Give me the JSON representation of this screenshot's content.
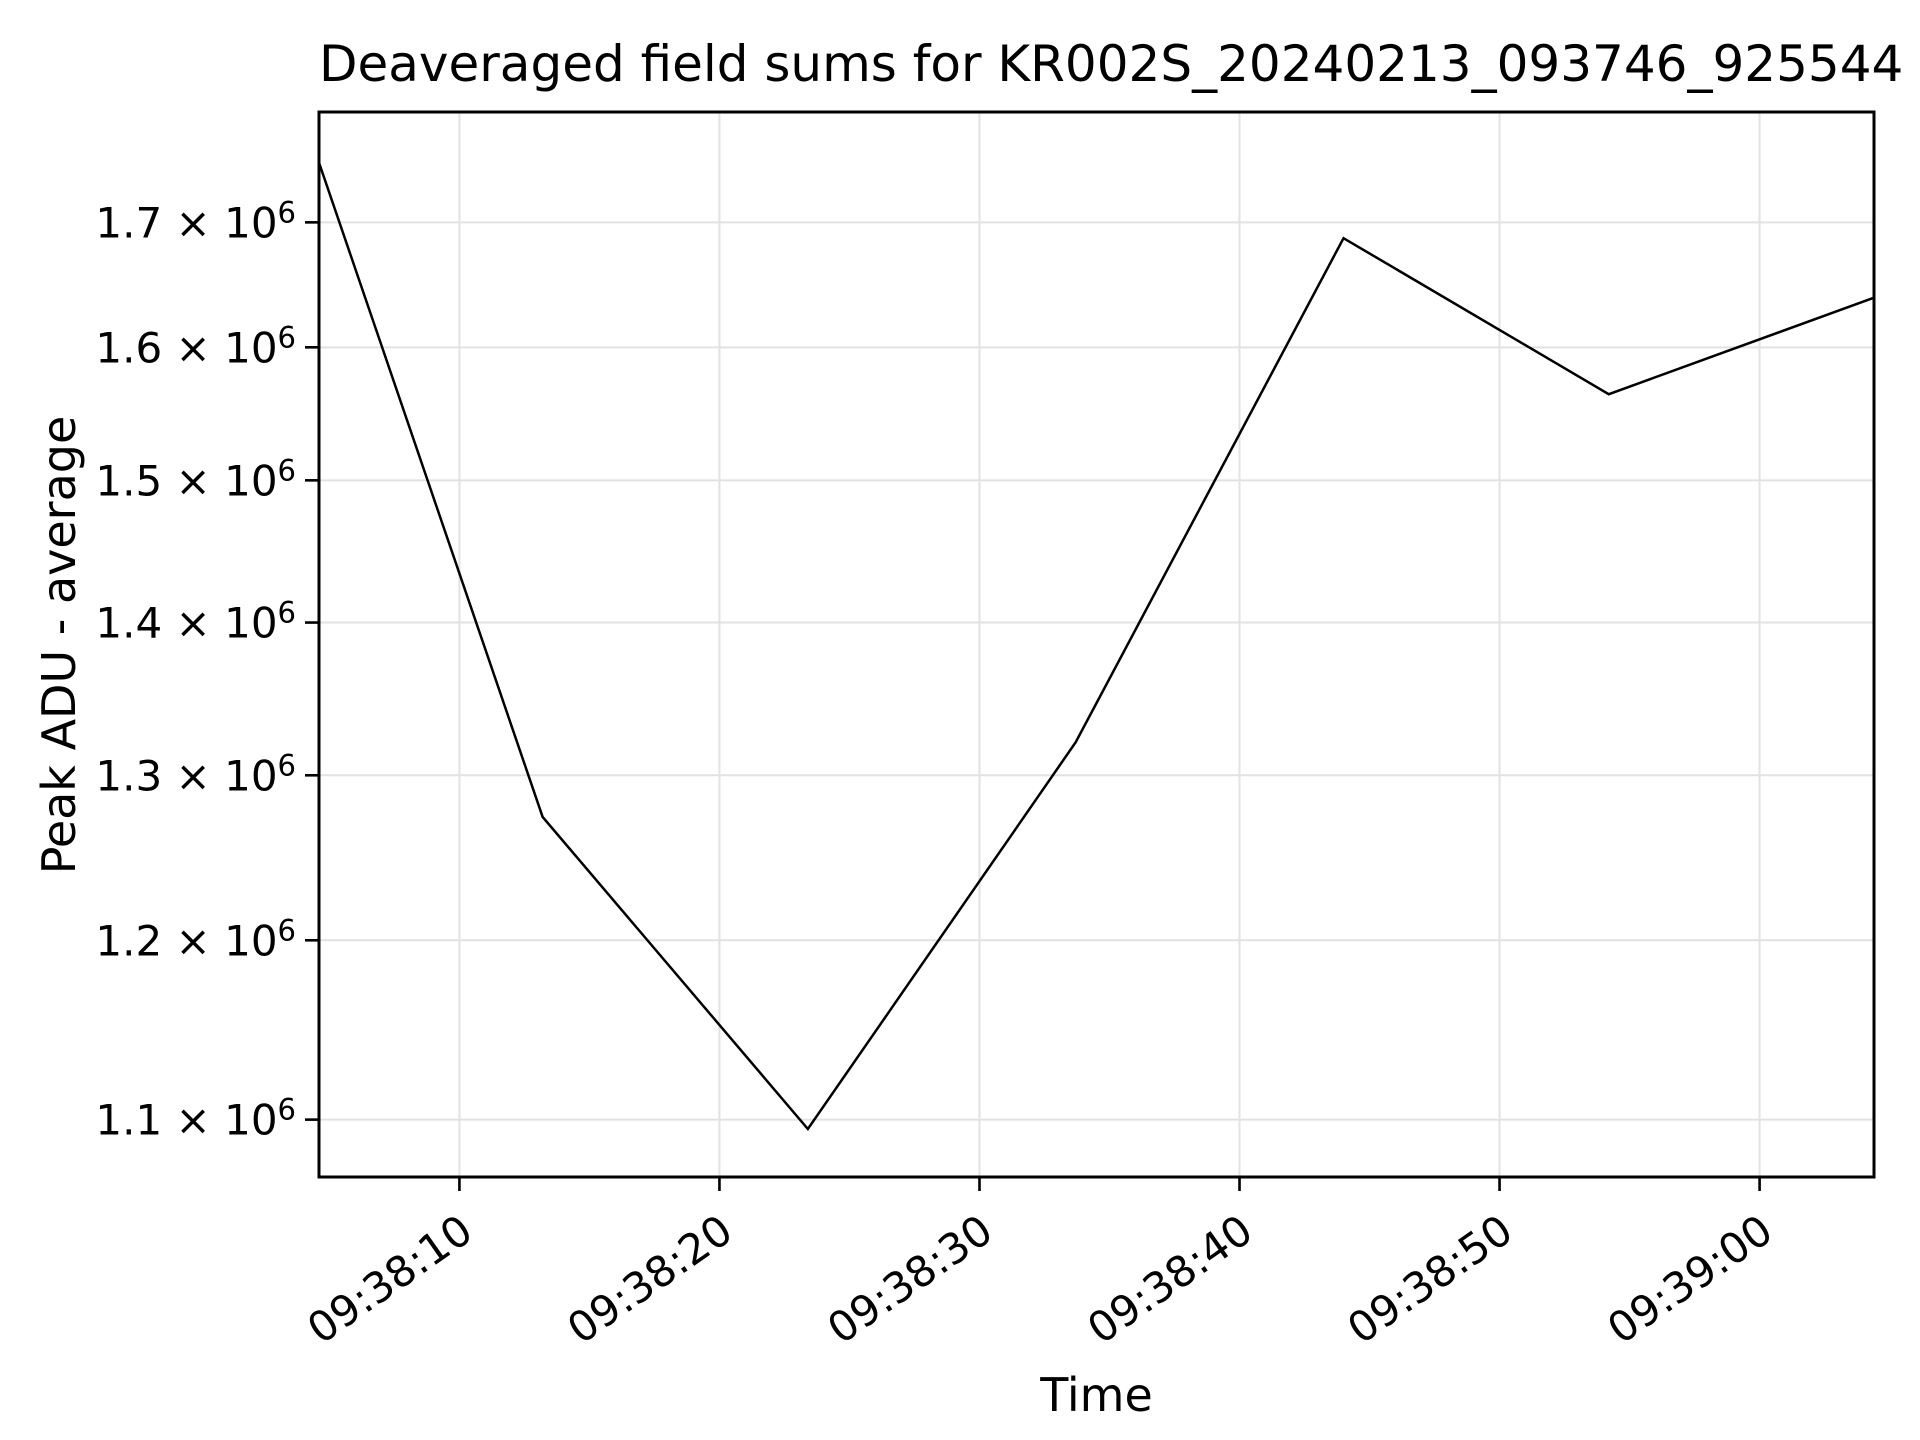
{
  "chart_data": {
    "type": "line",
    "title": "Deaveraged field sums for KR002S_20240213_093746_925544",
    "xlabel": "Time",
    "ylabel": "Peak ADU - average",
    "yscale": "log",
    "grid": true,
    "legend": null,
    "colors": {
      "line": "#000000",
      "grid": "#e2e2e2",
      "axes": "#000000",
      "background": "#ffffff"
    },
    "x_times": [
      "09:38:05",
      "09:38:13",
      "09:38:23",
      "09:38:34",
      "09:38:44",
      "09:38:54",
      "09:39:04"
    ],
    "x_seconds": [
      4.6,
      13.2,
      23.4,
      33.7,
      44.0,
      54.2,
      64.4
    ],
    "values": [
      1750000,
      1274000,
      1095000,
      1321000,
      1687000,
      1564000,
      1639000
    ],
    "series_name": "Peak ADU - average",
    "xlim_seconds": [
      4.6,
      64.4
    ],
    "ylim": [
      1069800,
      1793500
    ],
    "xticks": [
      {
        "seconds": 10,
        "label": "09:38:10"
      },
      {
        "seconds": 20,
        "label": "09:38:20"
      },
      {
        "seconds": 30,
        "label": "09:38:30"
      },
      {
        "seconds": 40,
        "label": "09:38:40"
      },
      {
        "seconds": 50,
        "label": "09:38:50"
      },
      {
        "seconds": 60,
        "label": "09:39:00"
      }
    ],
    "yticks": [
      {
        "value": 1100000,
        "base": "1.1 × 10",
        "exp": "6"
      },
      {
        "value": 1200000,
        "base": "1.2 × 10",
        "exp": "6"
      },
      {
        "value": 1300000,
        "base": "1.3 × 10",
        "exp": "6"
      },
      {
        "value": 1400000,
        "base": "1.4 × 10",
        "exp": "6"
      },
      {
        "value": 1500000,
        "base": "1.5 × 10",
        "exp": "6"
      },
      {
        "value": 1600000,
        "base": "1.6 × 10",
        "exp": "6"
      },
      {
        "value": 1700000,
        "base": "1.7 × 10",
        "exp": "6"
      }
    ]
  }
}
